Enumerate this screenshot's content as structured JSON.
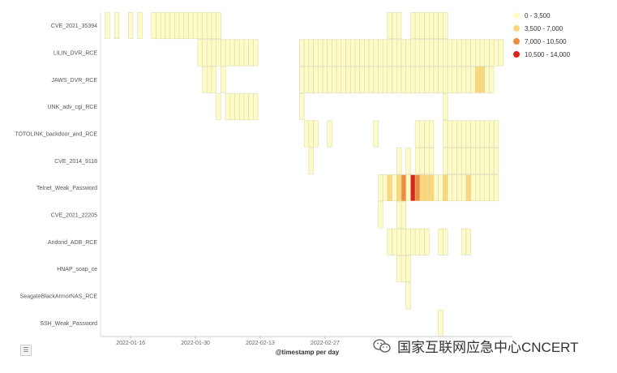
{
  "chart_data": {
    "type": "heatmap",
    "xlabel": "@timestamp per day",
    "x_ticks": [
      "2022-01-16",
      "2022-01-30",
      "2022-02-13",
      "2022-02-27"
    ],
    "rows": [
      "CVE_2021_35394",
      "LILIN_DVR_RCE",
      "JAWS_DVR_RCE",
      "UNK_adv_cgi_RCE",
      "TOTOLINK_backdoor_and_RCE",
      "CVE_2014_9118",
      "Telnet_Weak_Password",
      "CVE_2021_22205",
      "Andorid_ADB_RCE",
      "HNAP_soap_ce",
      "SeagateBlackArmorNAS_RCE",
      "SSH_Weak_Password"
    ],
    "legend": [
      {
        "label": "0 - 3,500",
        "color": "#fdfbc8"
      },
      {
        "label": "3,500 - 7,000",
        "color": "#fbd77f"
      },
      {
        "label": "7,000 - 10,500",
        "color": "#f08a3c"
      },
      {
        "label": "10,500 - 14,000",
        "color": "#d8261c"
      }
    ],
    "cells": {
      "CVE_2021_35394": [
        [
          1,
          1
        ],
        [
          3,
          1
        ],
        [
          6,
          1
        ],
        [
          8,
          1
        ],
        [
          11,
          10
        ],
        [
          21,
          5
        ],
        [
          62,
          3
        ],
        [
          67,
          8
        ]
      ],
      "LILIN_DVR_RCE": [
        [
          21,
          6
        ],
        [
          27,
          7
        ],
        [
          43,
          44
        ]
      ],
      "JAWS_DVR_RCE": [
        [
          22,
          3
        ],
        [
          26,
          1
        ],
        [
          43,
          38
        ],
        [
          81,
          2,
          2
        ],
        [
          83,
          2
        ]
      ],
      "UNK_adv_cgi_RCE": [
        [
          25,
          1
        ],
        [
          27,
          7
        ],
        [
          43,
          1
        ],
        [
          74,
          1
        ]
      ],
      "TOTOLINK_backdoor_and_RCE": [
        [
          44,
          3
        ],
        [
          49,
          1
        ],
        [
          59,
          1
        ],
        [
          68,
          4
        ],
        [
          74,
          12
        ]
      ],
      "CVE_2014_9118": [
        [
          45,
          1
        ],
        [
          64,
          1
        ],
        [
          66,
          1
        ],
        [
          68,
          4
        ],
        [
          74,
          12
        ]
      ],
      "Telnet_Weak_Password": [
        [
          60,
          2
        ],
        [
          62,
          1,
          2
        ],
        [
          63,
          1
        ],
        [
          64,
          1,
          2
        ],
        [
          65,
          1,
          3
        ],
        [
          66,
          1
        ],
        [
          67,
          1,
          4
        ],
        [
          68,
          1,
          3
        ],
        [
          69,
          1,
          2
        ],
        [
          70,
          2,
          2
        ],
        [
          72,
          2
        ],
        [
          74,
          1,
          2
        ],
        [
          75,
          4
        ],
        [
          79,
          1,
          2
        ],
        [
          80,
          6
        ]
      ],
      "CVE_2021_22205": [
        [
          60,
          1
        ],
        [
          64,
          1
        ],
        [
          65,
          1
        ]
      ],
      "Andorid_ADB_RCE": [
        [
          62,
          9
        ],
        [
          73,
          2
        ],
        [
          78,
          2
        ]
      ],
      "HNAP_soap_ce": [
        [
          64,
          3
        ]
      ],
      "SeagateBlackArmorNAS_RCE": [
        [
          66,
          1
        ]
      ],
      "SSH_Weak_Password": [
        [
          73,
          1
        ]
      ]
    }
  },
  "watermark": "国家互联网应急中心CNCERT",
  "menu_icon": "list-icon"
}
